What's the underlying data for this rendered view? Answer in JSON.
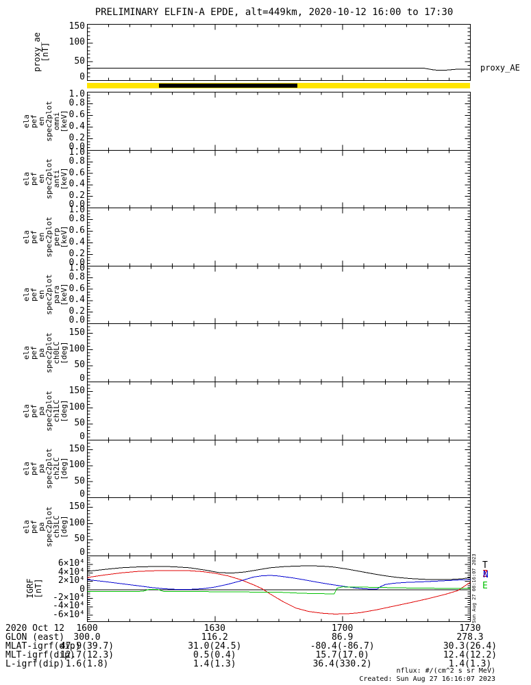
{
  "title": "PRELIMINARY ELFIN-A EPDE, alt=449km, 2020-10-12 16:00 to 17:30",
  "footer": {
    "units": "nflux: #/(cm^2 s sr MeV)",
    "created": "Created: Sun Aug 27 16:16:07 2023"
  },
  "side_note": "Sun Aug 27 08:16:07 2023",
  "xaxis": {
    "span_min": 90,
    "major_min": [
      0,
      30,
      60,
      90
    ],
    "minor_step_min": 5,
    "tick_labels": [
      "1600",
      "1630",
      "1700",
      "1730"
    ]
  },
  "annotation_rows": [
    {
      "label": "2020 Oct 12",
      "values": [
        "1600",
        "1630",
        "1700",
        "1730"
      ]
    },
    {
      "label": "GLON (east)",
      "values": [
        "300.0",
        "116.2",
        "86.9",
        "278.3"
      ]
    },
    {
      "label": "MLAT-igrf(dip)",
      "values": [
        "47.9(39.7)",
        "31.0(24.5)",
        "-80.4(-86.7)",
        "30.3(26.4)"
      ]
    },
    {
      "label": "MLT-igrf(dip)",
      "values": [
        "12.7(12.3)",
        "0.5(0.4)",
        "15.7(17.0)",
        "12.4(12.2)"
      ]
    },
    {
      "label": "L-igrf(dip)",
      "values": [
        "1.6(1.8)",
        "1.4(1.3)",
        "36.4(330.2)",
        "1.4(1.3)"
      ]
    }
  ],
  "chart_data": [
    {
      "id": "proxy_ae",
      "type": "line",
      "title_lines": [
        "proxy_ae",
        "[nT]"
      ],
      "right_label": "proxy_AE",
      "ylim": [
        0,
        150
      ],
      "yticks": [
        {
          "v": 0,
          "label": "0"
        },
        {
          "v": 50,
          "label": "50"
        },
        {
          "v": 100,
          "label": "100"
        },
        {
          "v": 150,
          "label": "150"
        }
      ],
      "yminor_step": 10,
      "series": [
        {
          "name": "proxy_AE",
          "color": "#000000",
          "points": [
            [
              0,
              33
            ],
            [
              79,
              33
            ],
            [
              80,
              31
            ],
            [
              81.5,
              28
            ],
            [
              83,
              27.5
            ],
            [
              85,
              28
            ],
            [
              86,
              29.5
            ],
            [
              88,
              30.5
            ],
            [
              90,
              30.5
            ]
          ]
        }
      ]
    },
    {
      "id": "time_coverage_bar",
      "type": "band",
      "background": "#FFE500",
      "segment_color": "#000000",
      "segment_frac": [
        0.188,
        0.55
      ]
    },
    {
      "id": "ela_pef_en_spec2plot_omni",
      "type": "empty_spectrogram",
      "title_lines": [
        "ela",
        "pef",
        "en",
        "spec2plot",
        "omni",
        "[keV]"
      ],
      "ylim": [
        0,
        1
      ],
      "yticks": [
        {
          "v": 0,
          "label": "0.0"
        },
        {
          "v": 0.2,
          "label": "0.2"
        },
        {
          "v": 0.4,
          "label": "0.4"
        },
        {
          "v": 0.6,
          "label": "0.6"
        },
        {
          "v": 0.8,
          "label": "0.8"
        },
        {
          "v": 1,
          "label": "1.0"
        }
      ],
      "yminor_step": 0.05,
      "series": []
    },
    {
      "id": "ela_pef_en_spec2plot_anti",
      "type": "empty_spectrogram",
      "title_lines": [
        "ela",
        "pef",
        "en",
        "spec2plot",
        "anti",
        "[keV]"
      ],
      "ylim": [
        0,
        1
      ],
      "yticks": [
        {
          "v": 0,
          "label": "0.0"
        },
        {
          "v": 0.2,
          "label": "0.2"
        },
        {
          "v": 0.4,
          "label": "0.4"
        },
        {
          "v": 0.6,
          "label": "0.6"
        },
        {
          "v": 0.8,
          "label": "0.8"
        },
        {
          "v": 1,
          "label": "1.0"
        }
      ],
      "yminor_step": 0.05,
      "series": []
    },
    {
      "id": "ela_pef_en_spec2plot_perp",
      "type": "empty_spectrogram",
      "title_lines": [
        "ela",
        "pef",
        "en",
        "spec2plot",
        "perp",
        "[keV]"
      ],
      "ylim": [
        0,
        1
      ],
      "yticks": [
        {
          "v": 0,
          "label": "0.0"
        },
        {
          "v": 0.2,
          "label": "0.2"
        },
        {
          "v": 0.4,
          "label": "0.4"
        },
        {
          "v": 0.6,
          "label": "0.6"
        },
        {
          "v": 0.8,
          "label": "0.8"
        },
        {
          "v": 1,
          "label": "1.0"
        }
      ],
      "yminor_step": 0.05,
      "series": []
    },
    {
      "id": "ela_pef_en_spec2plot_para",
      "type": "empty_spectrogram",
      "title_lines": [
        "ela",
        "pef",
        "en",
        "spec2plot",
        "para",
        "[keV]"
      ],
      "ylim": [
        0,
        1
      ],
      "yticks": [
        {
          "v": 0,
          "label": "0.0"
        },
        {
          "v": 0.2,
          "label": "0.2"
        },
        {
          "v": 0.4,
          "label": "0.4"
        },
        {
          "v": 0.6,
          "label": "0.6"
        },
        {
          "v": 0.8,
          "label": "0.8"
        },
        {
          "v": 1,
          "label": "1.0"
        }
      ],
      "yminor_step": 0.05,
      "series": []
    },
    {
      "id": "ela_pef_pa_spec2plot_ch0LC",
      "type": "empty_spectrogram",
      "title_lines": [
        "ela",
        "pef",
        "pa",
        "spec2plot",
        "ch0LC",
        "[deg]"
      ],
      "ylim": [
        0,
        180
      ],
      "yticks": [
        {
          "v": 0,
          "label": "0"
        },
        {
          "v": 50,
          "label": "50"
        },
        {
          "v": 100,
          "label": "100"
        },
        {
          "v": 150,
          "label": "150"
        }
      ],
      "yminor_step": 10,
      "series": []
    },
    {
      "id": "ela_pef_pa_spec2plot_ch1LC",
      "type": "empty_spectrogram",
      "title_lines": [
        "ela",
        "pef",
        "pa",
        "spec2plot",
        "ch1LC",
        "[deg]"
      ],
      "ylim": [
        0,
        180
      ],
      "yticks": [
        {
          "v": 0,
          "label": "0"
        },
        {
          "v": 50,
          "label": "50"
        },
        {
          "v": 100,
          "label": "100"
        },
        {
          "v": 150,
          "label": "150"
        }
      ],
      "yminor_step": 10,
      "series": []
    },
    {
      "id": "ela_pef_pa_spec2plot_ch2LC",
      "type": "empty_spectrogram",
      "title_lines": [
        "ela",
        "pef",
        "pa",
        "spec2plot",
        "ch2LC",
        "[deg]"
      ],
      "ylim": [
        0,
        180
      ],
      "yticks": [
        {
          "v": 0,
          "label": "0"
        },
        {
          "v": 50,
          "label": "50"
        },
        {
          "v": 100,
          "label": "100"
        },
        {
          "v": 150,
          "label": "150"
        }
      ],
      "yminor_step": 10,
      "series": []
    },
    {
      "id": "ela_pef_pa_spec2plot_ch3LC",
      "type": "empty_spectrogram",
      "title_lines": [
        "ela",
        "pef",
        "pa",
        "spec2plot",
        "ch3LC",
        "[deg]"
      ],
      "ylim": [
        0,
        180
      ],
      "yticks": [
        {
          "v": 0,
          "label": "0"
        },
        {
          "v": 50,
          "label": "50"
        },
        {
          "v": 100,
          "label": "100"
        },
        {
          "v": 150,
          "label": "150"
        }
      ],
      "yminor_step": 10,
      "series": []
    },
    {
      "id": "igrf",
      "type": "line",
      "title_lines": [
        "IGRF",
        "[nT]"
      ],
      "ylim": [
        -75000,
        80000
      ],
      "yticks": [
        {
          "v": 60000,
          "label": "6×10⁴"
        },
        {
          "v": 40000,
          "label": "4×10⁴"
        },
        {
          "v": 20000,
          "label": "2×10⁴"
        },
        {
          "v": 0,
          "label": "0"
        },
        {
          "v": -20000,
          "label": "-2×10⁴"
        },
        {
          "v": -40000,
          "label": "-4×10⁴"
        },
        {
          "v": -60000,
          "label": "-6×10⁴"
        }
      ],
      "yminor_step": 5000,
      "zero_line": true,
      "legend": [
        {
          "label": "T",
          "color": "#000000"
        },
        {
          "label": "Z",
          "color": "#E00000"
        },
        {
          "label": "N",
          "color": "#0000D0"
        },
        {
          "label": "E",
          "color": "#00C000"
        }
      ],
      "series": [
        {
          "name": "T",
          "color": "#000000",
          "points": [
            [
              0,
              43500
            ],
            [
              4,
              48000
            ],
            [
              8,
              52000
            ],
            [
              12,
              54000
            ],
            [
              16,
              55000
            ],
            [
              20,
              54500
            ],
            [
              24,
              52000
            ],
            [
              28,
              46000
            ],
            [
              31,
              40500
            ],
            [
              34,
              39500
            ],
            [
              37,
              42000
            ],
            [
              40,
              47000
            ],
            [
              43,
              52000
            ],
            [
              46,
              54500
            ],
            [
              49,
              56000
            ],
            [
              52,
              56500
            ],
            [
              55,
              56000
            ],
            [
              58,
              53500
            ],
            [
              61,
              49000
            ],
            [
              64,
              43500
            ],
            [
              67,
              38000
            ],
            [
              70,
              33000
            ],
            [
              73,
              29000
            ],
            [
              76,
              26500
            ],
            [
              79,
              24800
            ],
            [
              82,
              24000
            ],
            [
              85,
              24200
            ],
            [
              88,
              26000
            ],
            [
              90,
              29000
            ]
          ]
        },
        {
          "name": "Z",
          "color": "#E00000",
          "points": [
            [
              0,
              29000
            ],
            [
              4,
              35000
            ],
            [
              8,
              40000
            ],
            [
              12,
              43500
            ],
            [
              16,
              45000
            ],
            [
              20,
              45500
            ],
            [
              24,
              45000
            ],
            [
              27,
              43000
            ],
            [
              30,
              39000
            ],
            [
              33,
              33000
            ],
            [
              36,
              24000
            ],
            [
              39,
              12000
            ],
            [
              41,
              3000
            ],
            [
              43,
              -10000
            ],
            [
              46,
              -28000
            ],
            [
              49,
              -43000
            ],
            [
              52,
              -51000
            ],
            [
              55,
              -55000
            ],
            [
              58,
              -57000
            ],
            [
              61,
              -56500
            ],
            [
              64,
              -54000
            ],
            [
              68,
              -47000
            ],
            [
              72,
              -38500
            ],
            [
              76,
              -30000
            ],
            [
              80,
              -21000
            ],
            [
              84,
              -11000
            ],
            [
              87,
              -2000
            ],
            [
              90,
              18000
            ]
          ]
        },
        {
          "name": "N",
          "color": "#0000D0",
          "points": [
            [
              0,
              24000
            ],
            [
              4,
              19500
            ],
            [
              8,
              14500
            ],
            [
              12,
              9500
            ],
            [
              15,
              5500
            ],
            [
              18,
              2500
            ],
            [
              21,
              1000
            ],
            [
              24,
              1000
            ],
            [
              27,
              2500
            ],
            [
              30,
              6500
            ],
            [
              33,
              13000
            ],
            [
              36,
              21000
            ],
            [
              39,
              30000
            ],
            [
              41,
              33000
            ],
            [
              43,
              34000
            ],
            [
              45,
              32500
            ],
            [
              48,
              28500
            ],
            [
              51,
              23500
            ],
            [
              54,
              18000
            ],
            [
              57,
              13000
            ],
            [
              60,
              8500
            ],
            [
              63,
              4500
            ],
            [
              65,
              2500
            ],
            [
              67,
              1500
            ],
            [
              68,
              1500
            ],
            [
              69,
              8000
            ],
            [
              70,
              12500
            ],
            [
              72,
              15500
            ],
            [
              75,
              17500
            ],
            [
              79,
              19000
            ],
            [
              83,
              21000
            ],
            [
              87,
              23000
            ],
            [
              90,
              24500
            ]
          ]
        },
        {
          "name": "E",
          "color": "#00C000",
          "points": [
            [
              0,
              -4000
            ],
            [
              8,
              -4000
            ],
            [
              13,
              -3500
            ],
            [
              14.5,
              1000
            ],
            [
              16.5,
              1000
            ],
            [
              18,
              -4000
            ],
            [
              24,
              -4000
            ],
            [
              30,
              -4500
            ],
            [
              36,
              -5000
            ],
            [
              42,
              -5500
            ],
            [
              46,
              -6000
            ],
            [
              50,
              -8000
            ],
            [
              54,
              -9000
            ],
            [
              58,
              -9500
            ],
            [
              58.7,
              4000
            ],
            [
              60,
              7000
            ],
            [
              63,
              6500
            ],
            [
              67,
              6000
            ],
            [
              72,
              5000
            ],
            [
              78,
              4000
            ],
            [
              84,
              3500
            ],
            [
              90,
              3000
            ]
          ]
        }
      ]
    }
  ]
}
